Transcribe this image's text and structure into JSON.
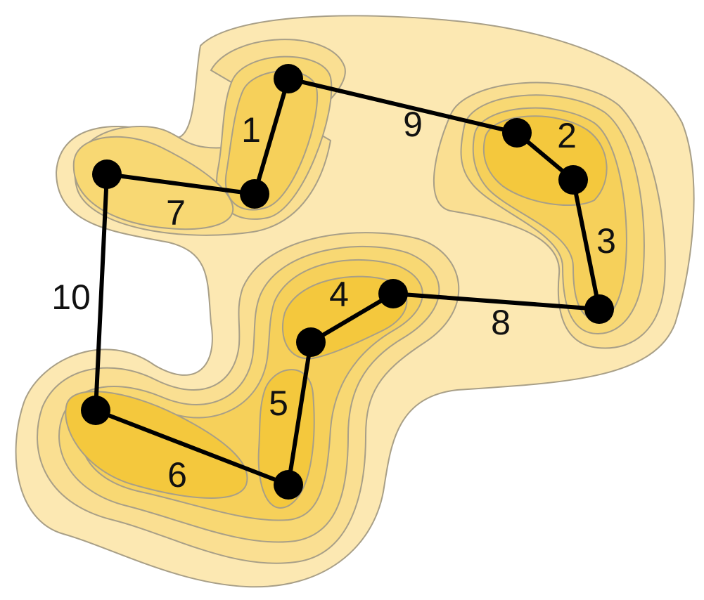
{
  "diagram": {
    "type": "graph-on-density-contours",
    "colors": {
      "level1": "#FCE8B2",
      "level2": "#FADF92",
      "level3": "#F8D873",
      "level4": "#F6D05A",
      "level5": "#F4C83D",
      "contour_stroke": "#A89F87",
      "edge": "#000000",
      "node": "#000000",
      "label": "#111111"
    },
    "nodes": [
      {
        "id": "n-top"
      },
      {
        "id": "n-mid-left-small"
      },
      {
        "id": "n-left"
      },
      {
        "id": "n-top-right"
      },
      {
        "id": "n-right-upper"
      },
      {
        "id": "n-right-lower"
      },
      {
        "id": "n-center"
      },
      {
        "id": "n-center-lower"
      },
      {
        "id": "n-bottom-center"
      },
      {
        "id": "n-bottom-left"
      }
    ],
    "edges": [
      {
        "label": "1",
        "from": "n-top",
        "to": "n-mid-left-small"
      },
      {
        "label": "2",
        "from": "n-top-right",
        "to": "n-right-upper"
      },
      {
        "label": "3",
        "from": "n-right-upper",
        "to": "n-right-lower"
      },
      {
        "label": "4",
        "from": "n-center-lower",
        "to": "n-center"
      },
      {
        "label": "5",
        "from": "n-center-lower",
        "to": "n-bottom-center"
      },
      {
        "label": "6",
        "from": "n-bottom-left",
        "to": "n-bottom-center"
      },
      {
        "label": "7",
        "from": "n-left",
        "to": "n-mid-left-small"
      },
      {
        "label": "8",
        "from": "n-center",
        "to": "n-right-lower"
      },
      {
        "label": "9",
        "from": "n-top",
        "to": "n-top-right"
      },
      {
        "label": "10",
        "from": "n-left",
        "to": "n-bottom-left"
      }
    ]
  }
}
